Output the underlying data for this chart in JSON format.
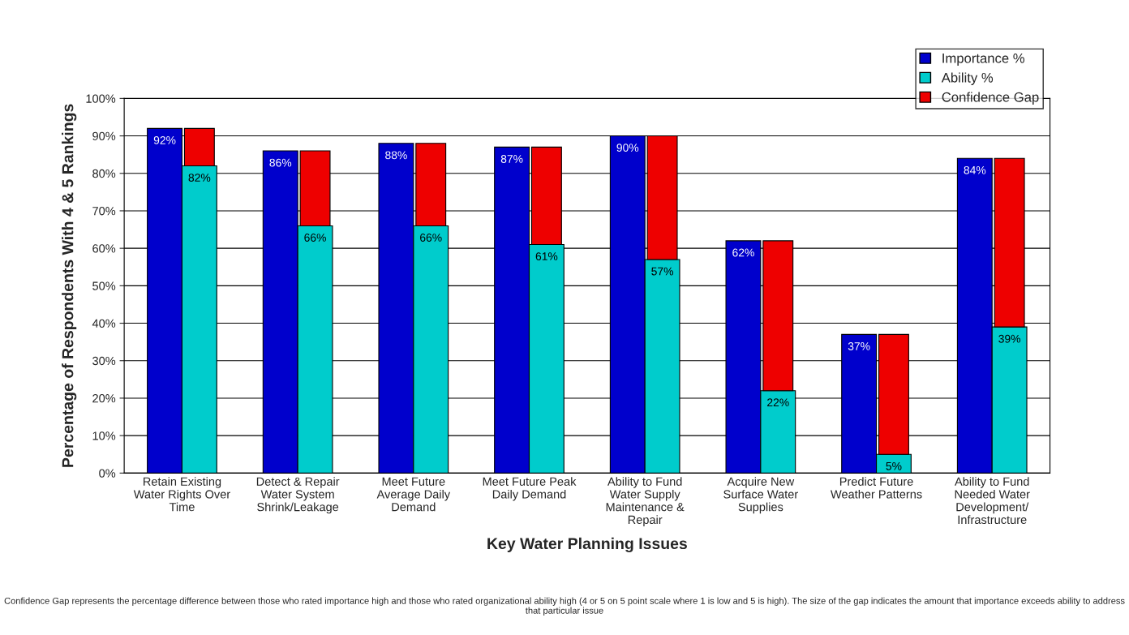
{
  "chart_data": {
    "type": "bar",
    "xlabel": "Key Water Planning Issues",
    "ylabel": "Percentage of Respondents With 4 & 5 Rankings",
    "categories": [
      "Retain Existing\nWater Rights Over\nTime",
      "Detect & Repair\nWater System\nShrink/Leakage",
      "Meet Future\nAverage Daily\nDemand",
      "Meet Future Peak\nDaily Demand",
      "Ability to Fund\nWater Supply\nMaintenance &\nRepair",
      "Acquire New\nSurface Water\nSupplies",
      "Predict Future\nWeather Patterns",
      "Ability to Fund\nNeeded Water\nDevelopment/\nInfrastructure"
    ],
    "series": [
      {
        "name": "Importance %",
        "color": "#0000cc",
        "values": [
          92,
          86,
          88,
          87,
          90,
          62,
          37,
          84
        ],
        "value_labels": [
          "92%",
          "86%",
          "88%",
          "87%",
          "90%",
          "62%",
          "37%",
          "84%"
        ]
      },
      {
        "name": "Ability %",
        "color": "#00cccc",
        "values": [
          82,
          66,
          66,
          61,
          57,
          22,
          5,
          39
        ],
        "value_labels": [
          "82%",
          "66%",
          "66%",
          "61%",
          "57%",
          "22%",
          "5%",
          "39%"
        ]
      },
      {
        "name": "Confidence Gap",
        "color": "#ee0000",
        "values": [
          10,
          20,
          22,
          26,
          33,
          40,
          32,
          45
        ],
        "base": [
          82,
          66,
          66,
          61,
          57,
          22,
          5,
          39
        ]
      }
    ],
    "ylim": [
      0,
      100
    ],
    "yticks": [
      {
        "value": 0,
        "label": "0%"
      },
      {
        "value": 10,
        "label": "10%"
      },
      {
        "value": 20,
        "label": "20%"
      },
      {
        "value": 30,
        "label": "30%"
      },
      {
        "value": 40,
        "label": "40%"
      },
      {
        "value": 50,
        "label": "50%"
      },
      {
        "value": 60,
        "label": "60%"
      },
      {
        "value": 70,
        "label": "70%"
      },
      {
        "value": 80,
        "label": "80%"
      },
      {
        "value": 90,
        "label": "90%"
      },
      {
        "value": 100,
        "label": "100%"
      }
    ],
    "grid": "y",
    "legend": "top right",
    "annotations": [
      "Confidence Gap represents the percentage difference between those who rated importance high and those who rated organizational ability high (4 or 5 on 5 point scale where 1 is low and 5 is high). The size of the gap indicates the amount that importance exceeds ability to address that particular issue"
    ]
  }
}
